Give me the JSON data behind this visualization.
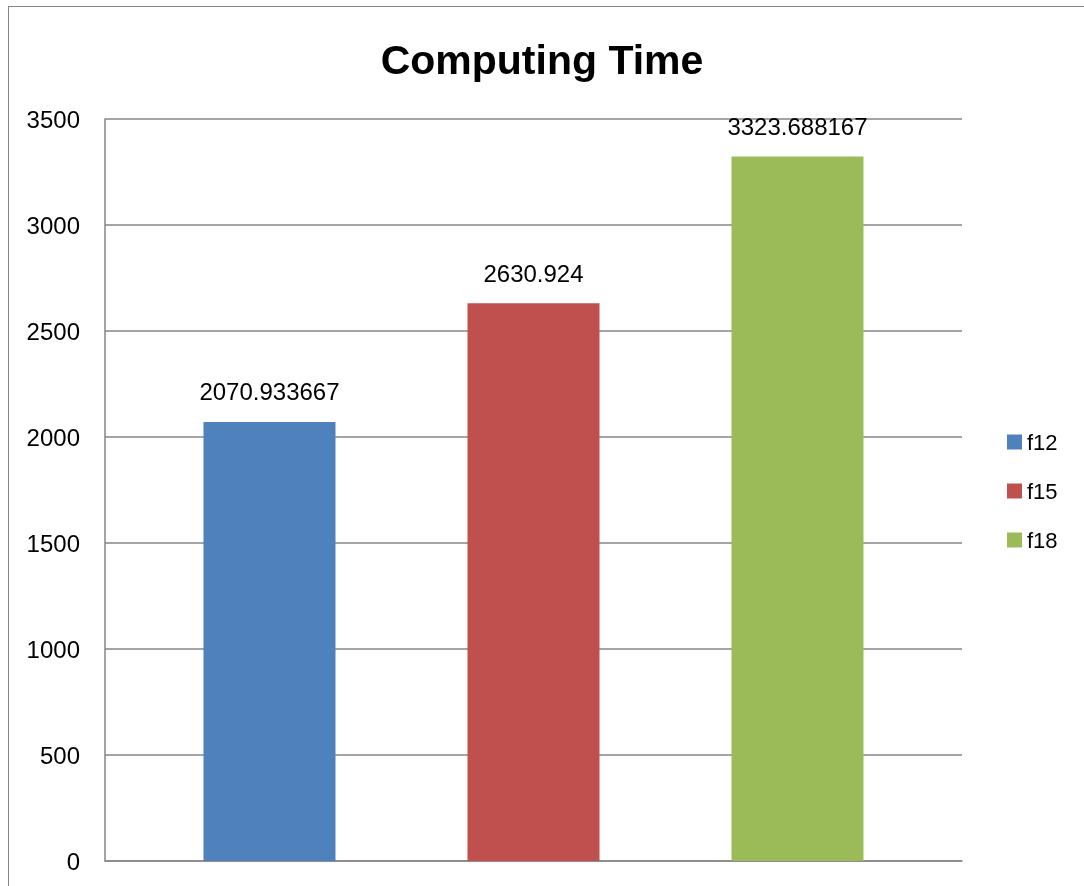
{
  "chart_data": {
    "type": "bar",
    "title": "Computing Time",
    "categories": [
      null
    ],
    "series": [
      {
        "name": "f12",
        "color": "#4f81bd",
        "values": [
          2070.933667
        ]
      },
      {
        "name": "f15",
        "color": "#c0504d",
        "values": [
          2630.924
        ]
      },
      {
        "name": "f18",
        "color": "#9bbb59",
        "values": [
          3323.688167
        ]
      }
    ],
    "ylim": [
      0,
      3500
    ],
    "yticks": [
      0,
      500,
      1000,
      1500,
      2000,
      2500,
      3000,
      3500
    ],
    "grid": "y",
    "legend": "right",
    "data_labels": true
  }
}
